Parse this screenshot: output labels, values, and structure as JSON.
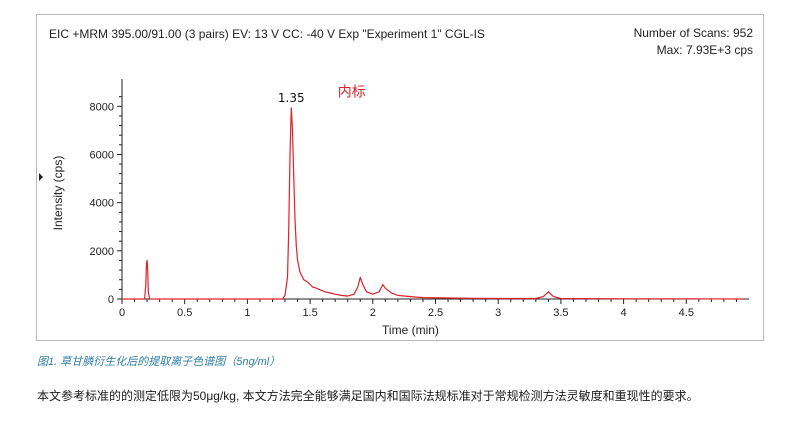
{
  "header": {
    "trace_info": "EIC +MRM 395.00/91.00 (3 pairs) EV: 13 V CC: -40 V Exp \"Experiment 1\" CGL-IS",
    "scans": "Number of Scans: 952",
    "max": "Max: 7.93E+3 cps"
  },
  "chart_data": {
    "type": "line",
    "xlabel": "Time (min)",
    "ylabel": "Intensity (cps)",
    "xlim": [
      0,
      5.0
    ],
    "ylim": [
      0,
      8800
    ],
    "x_ticks": [
      "0",
      "0.5",
      "1",
      "1.5",
      "2",
      "2.5",
      "3",
      "3.5",
      "4",
      "4.5"
    ],
    "y_ticks": [
      "0",
      "2000",
      "4000",
      "6000",
      "8000"
    ],
    "grid": false,
    "series": [
      {
        "color": "#e0202a",
        "points": [
          [
            0.0,
            0
          ],
          [
            0.18,
            0
          ],
          [
            0.19,
            600
          ],
          [
            0.195,
            1500
          ],
          [
            0.2,
            1600
          ],
          [
            0.205,
            1200
          ],
          [
            0.21,
            300
          ],
          [
            0.22,
            0
          ],
          [
            1.28,
            0
          ],
          [
            1.3,
            150
          ],
          [
            1.32,
            900
          ],
          [
            1.33,
            3000
          ],
          [
            1.34,
            6000
          ],
          [
            1.35,
            7930
          ],
          [
            1.36,
            7000
          ],
          [
            1.37,
            5000
          ],
          [
            1.38,
            3200
          ],
          [
            1.39,
            2200
          ],
          [
            1.4,
            1600
          ],
          [
            1.42,
            1100
          ],
          [
            1.45,
            800
          ],
          [
            1.48,
            700
          ],
          [
            1.5,
            600
          ],
          [
            1.52,
            500
          ],
          [
            1.55,
            450
          ],
          [
            1.58,
            380
          ],
          [
            1.62,
            300
          ],
          [
            1.66,
            250
          ],
          [
            1.7,
            200
          ],
          [
            1.75,
            150
          ],
          [
            1.8,
            120
          ],
          [
            1.85,
            200
          ],
          [
            1.88,
            500
          ],
          [
            1.9,
            900
          ],
          [
            1.92,
            600
          ],
          [
            1.95,
            300
          ],
          [
            2.0,
            200
          ],
          [
            2.05,
            300
          ],
          [
            2.08,
            600
          ],
          [
            2.1,
            450
          ],
          [
            2.15,
            250
          ],
          [
            2.2,
            150
          ],
          [
            2.3,
            100
          ],
          [
            2.4,
            60
          ],
          [
            2.6,
            40
          ],
          [
            2.8,
            30
          ],
          [
            3.0,
            20
          ],
          [
            3.3,
            20
          ],
          [
            3.36,
            100
          ],
          [
            3.4,
            300
          ],
          [
            3.44,
            100
          ],
          [
            3.5,
            20
          ],
          [
            4.0,
            10
          ],
          [
            4.5,
            10
          ],
          [
            4.95,
            0
          ]
        ]
      }
    ],
    "annotations": [
      {
        "text": "1.35",
        "x": 1.35,
        "y": 7930,
        "color": "#111111"
      },
      {
        "text": "内标",
        "x": 1.72,
        "y": 8150,
        "color": "#e0202a"
      }
    ]
  },
  "caption": "图1. 草甘膦衍生化后的提取离子色谱图（5ng/ml）",
  "body_text": "本文参考标准的的测定低限为50μg/kg, 本文方法完全能够满足国内和国际法规标准对于常规检测方法灵敏度和重现性的要求。"
}
